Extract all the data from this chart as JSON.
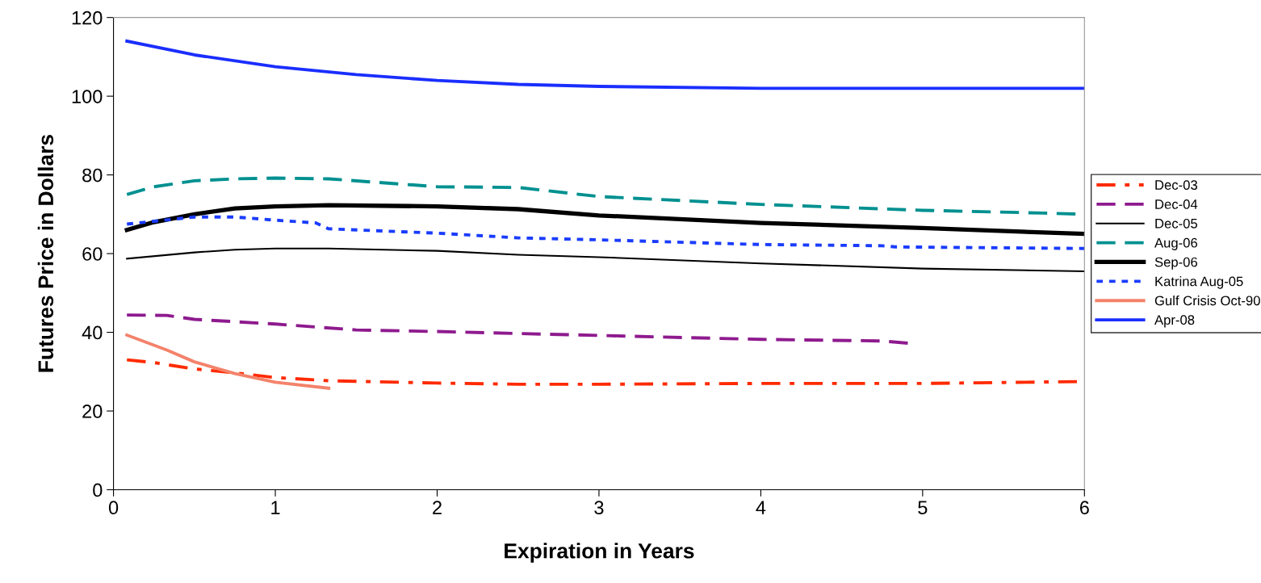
{
  "chart_data": {
    "type": "line",
    "xlabel": "Expiration in Years",
    "ylabel": "Futures Price in Dollars",
    "xlim": [
      0,
      6
    ],
    "ylim": [
      0,
      120
    ],
    "xticks": [
      0,
      1,
      2,
      3,
      4,
      5,
      6
    ],
    "yticks": [
      0,
      20,
      40,
      60,
      80,
      100,
      120
    ],
    "grid": false,
    "legend": "right",
    "marker": "none",
    "series": [
      {
        "name": "Dec-03",
        "color": "#ff2a00",
        "line_style": "dashdot",
        "x": [
          0.083,
          0.25,
          0.5,
          0.75,
          1,
          1.33,
          2,
          2.5,
          3,
          4,
          5,
          6
        ],
        "values": [
          33,
          32.3,
          30.7,
          29.7,
          28.5,
          27.7,
          27.1,
          26.8,
          26.8,
          27.0,
          27.0,
          27.5
        ]
      },
      {
        "name": "Dec-04",
        "color": "#8e1a8e",
        "line_style": "dashed",
        "x": [
          0.083,
          0.33,
          0.5,
          1,
          1.5,
          2,
          3,
          4,
          4.75,
          4.92
        ],
        "values": [
          44.4,
          44.3,
          43.3,
          42.1,
          40.6,
          40.2,
          39.2,
          38.2,
          37.8,
          37.2
        ]
      },
      {
        "name": "Dec-05",
        "color": "#000000",
        "line_style": "solid",
        "x": [
          0.083,
          0.5,
          0.75,
          1,
          1.33,
          2,
          2.5,
          3,
          4,
          5,
          6
        ],
        "values": [
          58.7,
          60.3,
          61,
          61.3,
          61.3,
          60.7,
          59.7,
          59.1,
          57.5,
          56.2,
          55.5
        ]
      },
      {
        "name": "Aug-06",
        "color": "#009090",
        "line_style": "dashed",
        "x": [
          0.083,
          0.25,
          0.5,
          0.75,
          1,
          1.33,
          2,
          2.5,
          3,
          4,
          5,
          5.75,
          6
        ],
        "values": [
          75,
          77,
          78.5,
          79,
          79.2,
          79,
          77,
          76.8,
          74.5,
          72.5,
          71,
          70.3,
          70
        ]
      },
      {
        "name": "Sep-06",
        "color": "#000000",
        "line_style": "solid",
        "x": [
          0.083,
          0.25,
          0.5,
          0.75,
          1,
          1.33,
          2,
          2.5,
          3,
          4,
          5,
          6
        ],
        "values": [
          66,
          68,
          70,
          71.5,
          72,
          72.3,
          72,
          71.3,
          69.7,
          67.8,
          66.5,
          65
        ]
      },
      {
        "name": "Katrina Aug-05",
        "color": "#1a3cff",
        "line_style": "dotted",
        "x": [
          0.083,
          0.5,
          0.75,
          1,
          1.25,
          1.33,
          2,
          2.5,
          3,
          4,
          4.75,
          4.83,
          6
        ],
        "values": [
          67.5,
          69.3,
          69.3,
          68.5,
          67.8,
          66.3,
          65.2,
          64,
          63.5,
          62.3,
          62,
          61.7,
          61.3
        ]
      },
      {
        "name": "Gulf Crisis Oct-90",
        "color": "#f4826b",
        "line_style": "solid",
        "x": [
          0.083,
          0.33,
          0.5,
          0.75,
          1,
          1.33
        ],
        "values": [
          39.3,
          35.5,
          32.5,
          29.5,
          27.3,
          25.8
        ]
      },
      {
        "name": "Apr-08",
        "color": "#1a2eff",
        "line_style": "solid",
        "x": [
          0.083,
          0.5,
          1,
          1.5,
          2,
          2.5,
          3,
          4,
          5,
          6
        ],
        "values": [
          114,
          110.5,
          107.5,
          105.5,
          104,
          103,
          102.5,
          102,
          102,
          102
        ]
      }
    ]
  }
}
